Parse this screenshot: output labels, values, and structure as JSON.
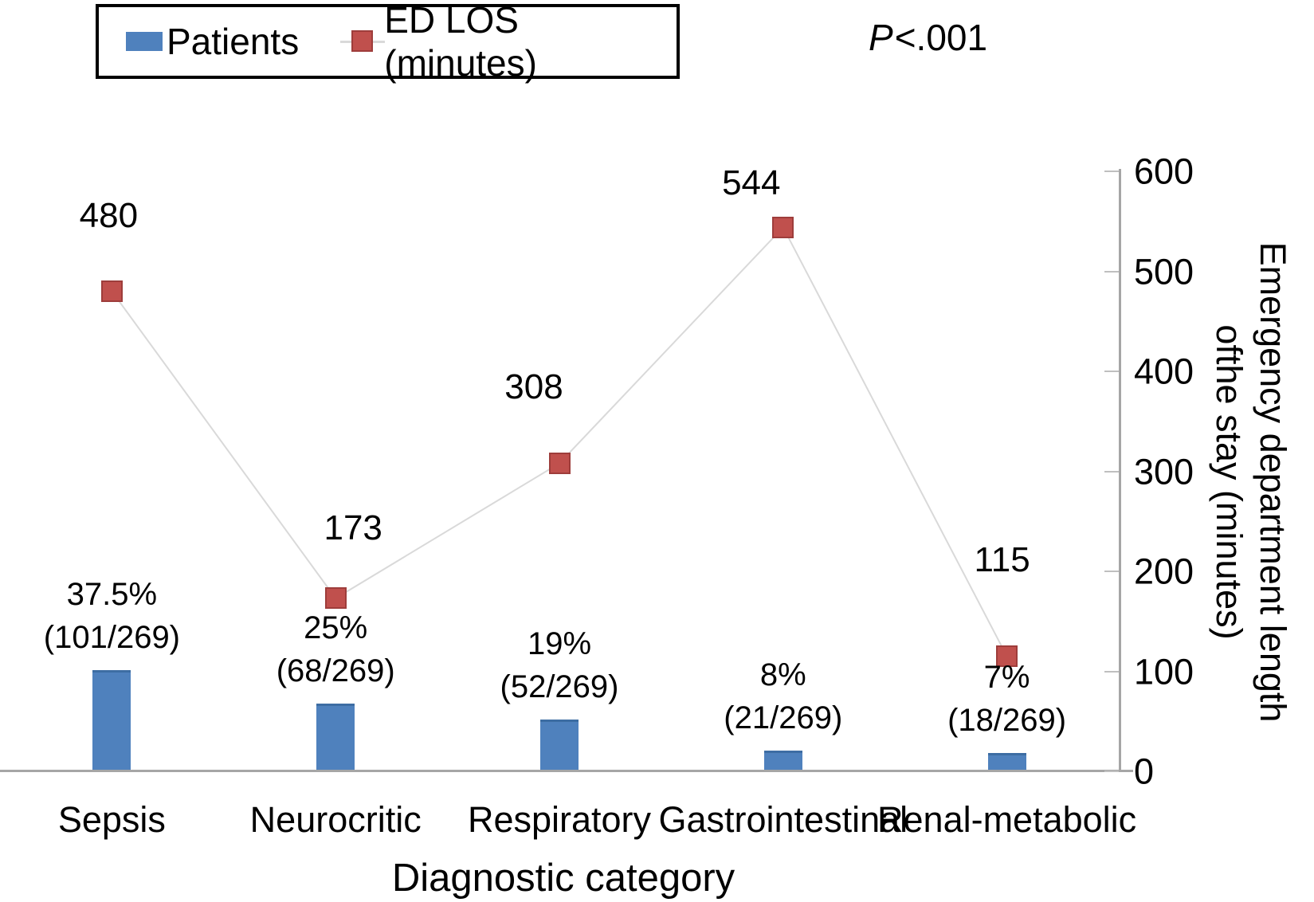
{
  "chart_data": {
    "type": "combo",
    "categories": [
      "Sepsis",
      "Neurocritic",
      "Respiratory",
      "Gastrointestinal",
      "Renal-metabolic"
    ],
    "series": [
      {
        "name": "Patients",
        "type": "bar",
        "values": [
          101,
          68,
          52,
          21,
          18
        ],
        "denominator": 269,
        "percent_labels": [
          "37.5%",
          "25%",
          "19%",
          "8%",
          "7%"
        ],
        "fraction_labels": [
          "(101/269)",
          "(68/269)",
          "(52/269)",
          "(21/269)",
          "(18/269)"
        ]
      },
      {
        "name": "ED LOS (minutes)",
        "type": "line",
        "values": [
          480,
          173,
          308,
          544,
          115
        ],
        "point_labels": [
          "480",
          "173",
          "308",
          "544",
          "115"
        ]
      }
    ],
    "xlabel": "Diagnostic category",
    "ylabel_right_line1": "Emergency department length",
    "ylabel_right_line2": "ofthe stay (minutes)",
    "y_right_min": 0,
    "y_right_max": 600,
    "y_right_step": 100,
    "grid": false,
    "legend_position": "top-left",
    "annotation_p_symbol": "P",
    "annotation_p_value": "<.001"
  },
  "legend": {
    "items": [
      {
        "label": "Patients",
        "swatch": "blue-bar-swatch"
      },
      {
        "label": "ED LOS (minutes)",
        "swatch": "red-square-marker"
      }
    ]
  },
  "colors": {
    "bar_fill": "#4f81bd",
    "bar_edge": "#3d6da3",
    "marker_fill": "#c0504d",
    "marker_edge": "#9e3d3b",
    "connector_line": "#d9d9d9",
    "axis_line": "#a6a6a6",
    "tick_line": "#bfbfbf",
    "text": "#000000"
  }
}
